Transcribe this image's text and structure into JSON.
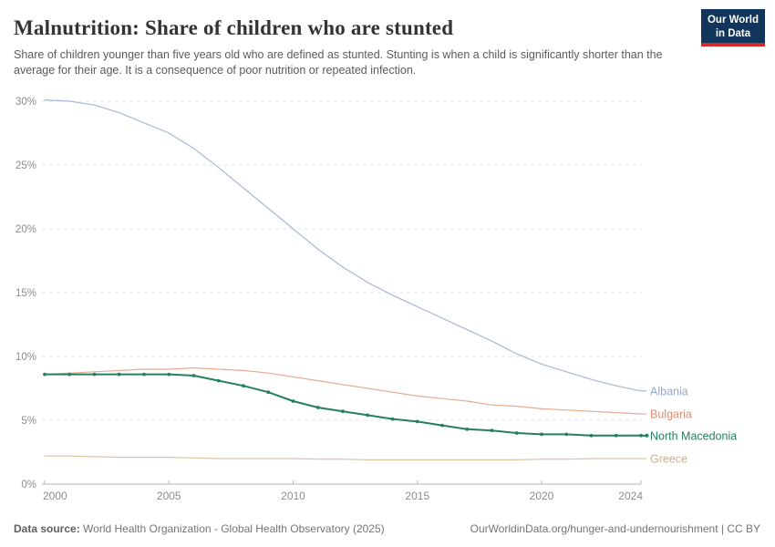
{
  "header": {
    "title": "Malnutrition: Share of children who are stunted",
    "subtitle": "Share of children younger than five years old who are defined as stunted. Stunting is when a child is significantly shorter than the average for their age. It is a consequence of poor nutrition or repeated infection.",
    "logo": {
      "line1": "Our World",
      "line2": "in Data",
      "bg_color": "#12355c",
      "accent_color": "#d42b2b"
    }
  },
  "footer": {
    "source_label": "Data source:",
    "source_text": " World Health Organization - Global Health Observatory (2025)",
    "link_text": "OurWorldinData.org/hunger-and-undernourishment | CC BY"
  },
  "chart_data": {
    "type": "line",
    "title": "Malnutrition: Share of children who are stunted",
    "xlabel": "",
    "ylabel": "",
    "xlim": [
      2000,
      2024
    ],
    "ylim": [
      0,
      30
    ],
    "grid": true,
    "legend_position": "right-end-labels",
    "x_ticks": [
      {
        "v": 2000,
        "label": "2000"
      },
      {
        "v": 2005,
        "label": "2005"
      },
      {
        "v": 2010,
        "label": "2010"
      },
      {
        "v": 2015,
        "label": "2015"
      },
      {
        "v": 2020,
        "label": "2020"
      },
      {
        "v": 2024,
        "label": "2024"
      }
    ],
    "y_ticks": [
      {
        "v": 0,
        "label": "0%"
      },
      {
        "v": 5,
        "label": "5%"
      },
      {
        "v": 10,
        "label": "10%"
      },
      {
        "v": 15,
        "label": "15%"
      },
      {
        "v": 20,
        "label": "20%"
      },
      {
        "v": 25,
        "label": "25%"
      },
      {
        "v": 30,
        "label": "30%"
      }
    ],
    "x": [
      2000,
      2001,
      2002,
      2003,
      2004,
      2005,
      2006,
      2007,
      2008,
      2009,
      2010,
      2011,
      2012,
      2013,
      2014,
      2015,
      2016,
      2017,
      2018,
      2019,
      2020,
      2021,
      2022,
      2023,
      2024
    ],
    "series": [
      {
        "name": "Albania",
        "color": "#a8b7d6",
        "label_color": "#96a8ca",
        "focused": false,
        "values": [
          30.1,
          30.0,
          29.7,
          29.1,
          28.3,
          27.5,
          26.3,
          24.8,
          23.2,
          21.6,
          20.0,
          18.4,
          17.0,
          15.8,
          14.8,
          13.9,
          13.0,
          12.1,
          11.2,
          10.2,
          9.4,
          8.8,
          8.2,
          7.7,
          7.3
        ]
      },
      {
        "name": "Bulgaria",
        "color": "#e5ab93",
        "label_color": "#dd8f75",
        "focused": false,
        "values": [
          8.6,
          8.7,
          8.8,
          8.9,
          9.0,
          9.0,
          9.1,
          9.0,
          8.9,
          8.7,
          8.4,
          8.1,
          7.8,
          7.5,
          7.2,
          6.9,
          6.7,
          6.5,
          6.2,
          6.1,
          5.9,
          5.8,
          5.7,
          5.6,
          5.5
        ]
      },
      {
        "name": "Greece",
        "color": "#ddc3a4",
        "label_color": "#cfb08a",
        "focused": false,
        "values": [
          2.2,
          2.2,
          2.15,
          2.1,
          2.1,
          2.1,
          2.05,
          2.0,
          2.0,
          2.0,
          2.0,
          1.95,
          1.95,
          1.9,
          1.9,
          1.9,
          1.9,
          1.9,
          1.9,
          1.9,
          1.95,
          1.95,
          2.0,
          2.0,
          2.0
        ]
      },
      {
        "name": "North Macedonia",
        "color": "#24805e",
        "label_color": "#24805e",
        "focused": true,
        "values": [
          8.6,
          8.6,
          8.6,
          8.6,
          8.6,
          8.6,
          8.5,
          8.1,
          7.7,
          7.2,
          6.5,
          6.0,
          5.7,
          5.4,
          5.1,
          4.9,
          4.6,
          4.3,
          4.2,
          4.0,
          3.9,
          3.9,
          3.8,
          3.8,
          3.8
        ]
      }
    ],
    "style": {
      "grid_color": "#e6e6e6",
      "axis_color": "#b3b3b3",
      "tick_label_color": "#8c8c8c"
    }
  }
}
